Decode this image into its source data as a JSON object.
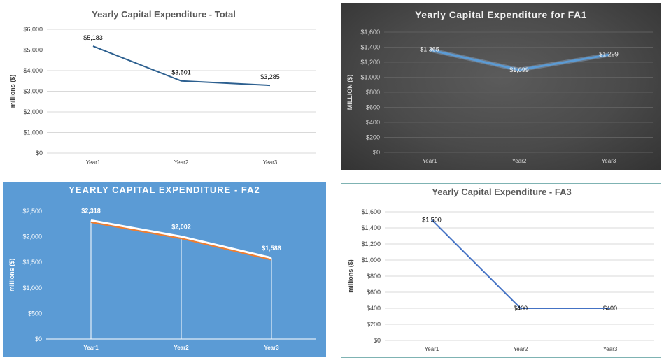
{
  "chart_data": [
    {
      "type": "line",
      "title": "Yearly Capital Expenditure - Total",
      "ylabel": "millions ($)",
      "categories": [
        "Year1",
        "Year2",
        "Year3"
      ],
      "series": [
        {
          "values": [
            5183,
            3501,
            3285
          ]
        }
      ],
      "data_labels": [
        "$5,183",
        "$3,501",
        "$3,285"
      ],
      "yticks": [
        0,
        1000,
        2000,
        3000,
        4000,
        5000,
        6000
      ],
      "ytick_labels": [
        "$0",
        "$1,000",
        "$2,000",
        "$3,000",
        "$4,000",
        "$5,000",
        "$6,000"
      ],
      "ylim": [
        0,
        6000
      ],
      "grid": true,
      "line_color": "#2c5f8f"
    },
    {
      "type": "line",
      "title": "Yearly Capital Expenditure for FA1",
      "ylabel": "MILLION ($)",
      "categories": [
        "Year1",
        "Year2",
        "Year3"
      ],
      "series": [
        {
          "values": [
            1365,
            1099,
            1299
          ]
        }
      ],
      "data_labels": [
        "$1,365",
        "$1,099",
        "$1,299"
      ],
      "yticks": [
        0,
        200,
        400,
        600,
        800,
        1000,
        1200,
        1400,
        1600
      ],
      "ytick_labels": [
        "$0",
        "$200",
        "$400",
        "$600",
        "$800",
        "$1,000",
        "$1,200",
        "$1,400",
        "$1,600"
      ],
      "ylim": [
        0,
        1600
      ],
      "grid": true,
      "line_color": "#5b9bd5"
    },
    {
      "type": "line",
      "title": "YEARLY CAPITAL EXPENDITURE - FA2",
      "ylabel": "millions ($)",
      "categories": [
        "Year1",
        "Year2",
        "Year3"
      ],
      "series": [
        {
          "values": [
            2318,
            2002,
            1586
          ]
        }
      ],
      "data_labels": [
        "$2,318",
        "$2,002",
        "$1,586"
      ],
      "yticks": [
        0,
        500,
        1000,
        1500,
        2000,
        2500
      ],
      "ytick_labels": [
        "$0",
        "$500",
        "$1,000",
        "$1,500",
        "$2,000",
        "$2,500"
      ],
      "ylim": [
        0,
        2500
      ],
      "grid": false,
      "line_color": "#ffffff",
      "shadow_color": "#ed7d31"
    },
    {
      "type": "line",
      "title": "Yearly Capital Expenditure - FA3",
      "ylabel": "millions ($)",
      "categories": [
        "Year1",
        "Year2",
        "Year3"
      ],
      "series": [
        {
          "values": [
            1500,
            400,
            400
          ]
        }
      ],
      "data_labels": [
        "$1,500",
        "$400",
        "$400"
      ],
      "yticks": [
        0,
        200,
        400,
        600,
        800,
        1000,
        1200,
        1400,
        1600
      ],
      "ytick_labels": [
        "$0",
        "$200",
        "$400",
        "$600",
        "$800",
        "$1,000",
        "$1,200",
        "$1,400",
        "$1,600"
      ],
      "ylim": [
        0,
        1600
      ],
      "grid": true,
      "line_color": "#4472c4"
    }
  ]
}
